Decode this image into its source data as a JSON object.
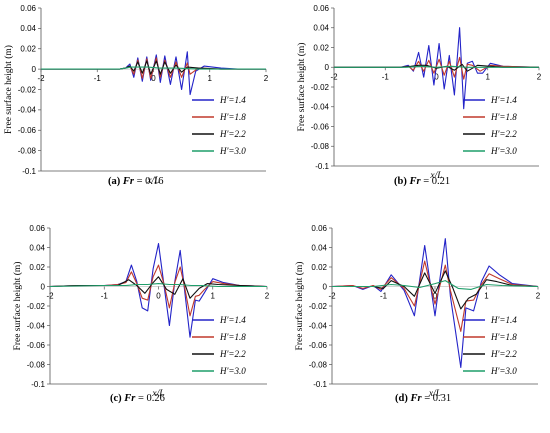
{
  "chart_data": [
    {
      "type": "line",
      "caption": {
        "label": "(a)",
        "prefix": "Fr",
        "value": "= 0.16"
      },
      "xlabel": "x/L",
      "ylabel": "Free surface height (m)",
      "xlim": [
        -2,
        2
      ],
      "ylim": [
        -0.1,
        0.06
      ],
      "xticks": [
        -2,
        -1,
        0,
        1,
        2
      ],
      "yticks": [
        -0.1,
        -0.08,
        -0.06,
        -0.04,
        -0.02,
        0,
        0.02,
        0.04,
        0.06
      ],
      "ytick_labels": [
        "-0.1",
        "-0.08",
        "-0.06",
        "-0.04",
        "-0.02",
        "0",
        "0.02",
        "0.04",
        "0.06"
      ],
      "legend_position": "bottom-right",
      "series": [
        {
          "name": "H'=1.4",
          "color": "#2323c8",
          "x": [
            -2,
            -0.6,
            -0.5,
            -0.42,
            -0.35,
            -0.28,
            -0.2,
            -0.12,
            -0.05,
            0.05,
            0.12,
            0.2,
            0.3,
            0.4,
            0.5,
            0.6,
            0.65,
            0.75,
            0.9,
            1.2,
            1.5,
            2
          ],
          "y": [
            0,
            0,
            0.001,
            0.005,
            -0.008,
            0.011,
            -0.012,
            0.012,
            -0.011,
            0.014,
            -0.013,
            0.013,
            -0.015,
            0.012,
            -0.02,
            0.017,
            -0.025,
            -0.002,
            0.003,
            0.001,
            0,
            0
          ]
        },
        {
          "name": "H'=1.8",
          "color": "#c0392b",
          "x": [
            -2,
            -0.6,
            -0.5,
            -0.42,
            -0.35,
            -0.28,
            -0.2,
            -0.12,
            -0.05,
            0.05,
            0.12,
            0.2,
            0.3,
            0.4,
            0.5,
            0.6,
            0.65,
            0.8,
            1.2,
            2
          ],
          "y": [
            0,
            0,
            0.001,
            0.003,
            -0.005,
            0.009,
            -0.009,
            0.01,
            -0.009,
            0.011,
            -0.008,
            0.009,
            -0.008,
            0.007,
            -0.008,
            0.006,
            -0.005,
            0.001,
            0,
            0
          ]
        },
        {
          "name": "H'=2.2",
          "color": "#111111",
          "x": [
            -2,
            -0.6,
            -0.5,
            -0.42,
            -0.35,
            -0.28,
            -0.2,
            -0.12,
            -0.05,
            0.05,
            0.12,
            0.2,
            0.3,
            0.4,
            0.5,
            0.6,
            0.8,
            1.2,
            2
          ],
          "y": [
            0,
            0,
            0.001,
            0.003,
            -0.002,
            0.007,
            -0.004,
            0.008,
            -0.005,
            0.008,
            -0.005,
            0.007,
            -0.004,
            0.004,
            -0.003,
            0.002,
            0.001,
            0,
            0
          ]
        },
        {
          "name": "H'=3.0",
          "color": "#1f9e6a",
          "x": [
            -2,
            -0.6,
            -0.5,
            -0.4,
            -0.3,
            -0.1,
            0.1,
            0.4,
            0.8,
            2
          ],
          "y": [
            0,
            0,
            0.001,
            0.002,
            0.002,
            0.002,
            0.001,
            0.001,
            0,
            0
          ]
        }
      ]
    },
    {
      "type": "line",
      "caption": {
        "label": "(b)",
        "prefix": "Fr",
        "value": "= 0.21"
      },
      "xlabel": "x/L",
      "ylabel": "Free surface height (m)",
      "xlim": [
        -2,
        2
      ],
      "ylim": [
        -0.1,
        0.06
      ],
      "xticks": [
        -2,
        -1,
        0,
        1,
        2
      ],
      "yticks": [
        -0.1,
        -0.08,
        -0.06,
        -0.04,
        -0.02,
        0,
        0.02,
        0.04,
        0.06
      ],
      "ytick_labels": [
        "-0.1",
        "-0.08",
        "-0.06",
        "-0.04",
        "-0.02",
        "0",
        "0.02",
        "0.04",
        "0.06"
      ],
      "legend_position": "right",
      "series": [
        {
          "name": "H'=1.4",
          "color": "#2323c8",
          "x": [
            -2,
            -0.7,
            -0.55,
            -0.45,
            -0.35,
            -0.25,
            -0.15,
            -0.05,
            0.05,
            0.15,
            0.25,
            0.35,
            0.45,
            0.53,
            0.6,
            0.7,
            0.8,
            0.9,
            1.05,
            1.3,
            2
          ],
          "y": [
            0,
            0,
            0.002,
            -0.004,
            0.015,
            -0.01,
            0.022,
            -0.018,
            0.024,
            -0.022,
            0.012,
            -0.028,
            0.04,
            -0.042,
            0.004,
            0.006,
            -0.006,
            -0.006,
            0.004,
            0.001,
            0
          ]
        },
        {
          "name": "H'=1.8",
          "color": "#c0392b",
          "x": [
            -2,
            -0.7,
            -0.55,
            -0.45,
            -0.35,
            -0.25,
            -0.15,
            -0.05,
            0.05,
            0.15,
            0.25,
            0.35,
            0.45,
            0.53,
            0.6,
            0.7,
            0.85,
            1.05,
            1.3,
            2
          ],
          "y": [
            0,
            0,
            0.001,
            -0.003,
            0.006,
            -0.004,
            0.007,
            -0.006,
            0.008,
            -0.008,
            0.006,
            -0.01,
            0.01,
            -0.012,
            0.003,
            0.002,
            -0.004,
            0.002,
            0.001,
            0
          ]
        },
        {
          "name": "H'=2.2",
          "color": "#111111",
          "x": [
            -2,
            -0.7,
            -0.5,
            -0.35,
            -0.2,
            0,
            0.2,
            0.35,
            0.5,
            0.6,
            0.8,
            1.05,
            1.3,
            2
          ],
          "y": [
            0,
            0,
            0.001,
            0.002,
            0.002,
            -0.001,
            0.001,
            -0.003,
            0.003,
            -0.004,
            0.002,
            0.001,
            0,
            0
          ]
        },
        {
          "name": "H'=3.0",
          "color": "#1f9e6a",
          "x": [
            -2,
            -0.6,
            -0.3,
            0,
            0.3,
            0.6,
            1,
            2
          ],
          "y": [
            0,
            0,
            0.001,
            0,
            0.001,
            0,
            0,
            0
          ]
        }
      ]
    },
    {
      "type": "line",
      "caption": {
        "label": "(c)",
        "prefix": "Fr",
        "value": "= 0.26"
      },
      "xlabel": "x/L",
      "ylabel": "Free surface height (m)",
      "xlim": [
        -2,
        2
      ],
      "ylim": [
        -0.1,
        0.06
      ],
      "xticks": [
        -2,
        -1,
        0,
        1,
        2
      ],
      "yticks": [
        -0.1,
        -0.08,
        -0.06,
        -0.04,
        -0.02,
        0,
        0.02,
        0.04,
        0.06
      ],
      "ytick_labels": [
        "-0.1",
        "-0.08",
        "-0.06",
        "-0.04",
        "-0.02",
        "0",
        "0.02",
        "0.04",
        "0.06"
      ],
      "legend_position": "bottom-right",
      "series": [
        {
          "name": "H'=1.4",
          "color": "#2323c8",
          "x": [
            -2,
            -1.5,
            -1,
            -0.75,
            -0.6,
            -0.5,
            -0.4,
            -0.3,
            -0.2,
            -0.1,
            0,
            0.1,
            0.2,
            0.3,
            0.4,
            0.48,
            0.58,
            0.68,
            0.75,
            0.85,
            1,
            1.2,
            1.5,
            2
          ],
          "y": [
            0,
            0.001,
            0.001,
            0.002,
            0.005,
            0.022,
            0.005,
            -0.022,
            -0.025,
            0.018,
            0.044,
            0.002,
            -0.04,
            0.005,
            0.037,
            -0.003,
            -0.052,
            -0.014,
            -0.015,
            -0.006,
            0.008,
            0.004,
            0.001,
            0
          ]
        },
        {
          "name": "H'=1.8",
          "color": "#c0392b",
          "x": [
            -2,
            -1.5,
            -1,
            -0.75,
            -0.6,
            -0.5,
            -0.4,
            -0.3,
            -0.2,
            -0.1,
            0,
            0.1,
            0.2,
            0.3,
            0.4,
            0.48,
            0.58,
            0.68,
            0.75,
            0.85,
            1,
            1.2,
            1.5,
            2
          ],
          "y": [
            0,
            0.001,
            0.001,
            0.002,
            0.004,
            0.015,
            0.003,
            -0.012,
            -0.014,
            0.01,
            0.022,
            0.003,
            -0.022,
            0.004,
            0.02,
            0,
            -0.03,
            -0.01,
            -0.009,
            -0.003,
            0.005,
            0.003,
            0.001,
            0
          ]
        },
        {
          "name": "H'=2.2",
          "color": "#111111",
          "x": [
            -2,
            -1.5,
            -1,
            -0.75,
            -0.55,
            -0.4,
            -0.25,
            -0.1,
            0,
            0.15,
            0.3,
            0.45,
            0.58,
            0.75,
            0.9,
            1.1,
            1.5,
            2
          ],
          "y": [
            0,
            0.001,
            0.001,
            0.001,
            0.007,
            0.001,
            -0.007,
            0.004,
            0.01,
            -0.003,
            -0.008,
            0.008,
            -0.012,
            -0.002,
            0.003,
            0.002,
            0.001,
            0
          ]
        },
        {
          "name": "H'=3.0",
          "color": "#1f9e6a",
          "x": [
            -2,
            -1,
            -0.6,
            -0.4,
            -0.2,
            0,
            0.2,
            0.4,
            0.6,
            0.8,
            1.1,
            1.5,
            2
          ],
          "y": [
            0,
            0.001,
            0.001,
            0.002,
            0.002,
            0.003,
            0.002,
            0.002,
            0.001,
            0.001,
            0,
            0,
            0
          ]
        }
      ]
    },
    {
      "type": "line",
      "caption": {
        "label": "(d)",
        "prefix": "Fr",
        "value": "= 0.31"
      },
      "xlabel": "x/L",
      "ylabel": "Free surface height (m)",
      "xlim": [
        -2,
        2
      ],
      "ylim": [
        -0.1,
        0.06
      ],
      "xticks": [
        -2,
        -1,
        0,
        1,
        2
      ],
      "yticks": [
        -0.1,
        -0.08,
        -0.06,
        -0.04,
        -0.02,
        0,
        0.02,
        0.04,
        0.06
      ],
      "ytick_labels": [
        "-0.1",
        "-0.08",
        "-0.06",
        "-0.04",
        "-0.02",
        "0",
        "0.02",
        "0.04",
        "0.06"
      ],
      "legend_position": "bottom-right",
      "series": [
        {
          "name": "H'=1.4",
          "color": "#2323c8",
          "x": [
            -2,
            -1.6,
            -1.4,
            -1.2,
            -1.05,
            -0.85,
            -0.6,
            -0.4,
            -0.2,
            0,
            0.2,
            0.3,
            0.5,
            0.6,
            0.75,
            0.9,
            1.05,
            1.25,
            1.5,
            2
          ],
          "y": [
            0,
            0.001,
            -0.003,
            0.001,
            -0.005,
            0.012,
            -0.004,
            -0.03,
            0.042,
            -0.03,
            0.049,
            -0.01,
            -0.083,
            -0.022,
            -0.025,
            0.005,
            0.021,
            0.012,
            0.003,
            0
          ]
        },
        {
          "name": "H'=1.8",
          "color": "#c0392b",
          "x": [
            -2,
            -1.6,
            -1.4,
            -1.2,
            -1.05,
            -0.85,
            -0.6,
            -0.4,
            -0.2,
            0,
            0.2,
            0.3,
            0.5,
            0.6,
            0.75,
            0.9,
            1.05,
            1.25,
            1.5,
            2
          ],
          "y": [
            0,
            0.001,
            -0.002,
            0.001,
            -0.003,
            0.009,
            -0.002,
            -0.02,
            0.026,
            -0.018,
            0.022,
            -0.004,
            -0.046,
            -0.015,
            -0.014,
            0.002,
            0.013,
            0.008,
            0.002,
            0
          ]
        },
        {
          "name": "H'=2.2",
          "color": "#111111",
          "x": [
            -2,
            -1.6,
            -1.2,
            -1,
            -0.85,
            -0.6,
            -0.4,
            -0.2,
            0,
            0.2,
            0.35,
            0.5,
            0.65,
            0.8,
            1,
            1.2,
            1.5,
            2
          ],
          "y": [
            0,
            0,
            0,
            -0.002,
            0.006,
            0,
            -0.01,
            0.014,
            -0.007,
            0.016,
            -0.002,
            -0.023,
            -0.012,
            -0.008,
            0.007,
            0.005,
            0.001,
            0
          ]
        },
        {
          "name": "H'=3.0",
          "color": "#1f9e6a",
          "x": [
            -2,
            -1.2,
            -0.85,
            -0.6,
            -0.3,
            0,
            0.2,
            0.45,
            0.7,
            1,
            1.3,
            2
          ],
          "y": [
            0,
            0,
            0.002,
            0.001,
            -0.001,
            0.003,
            0.006,
            -0.002,
            -0.003,
            0.002,
            0.001,
            0
          ]
        }
      ]
    }
  ]
}
